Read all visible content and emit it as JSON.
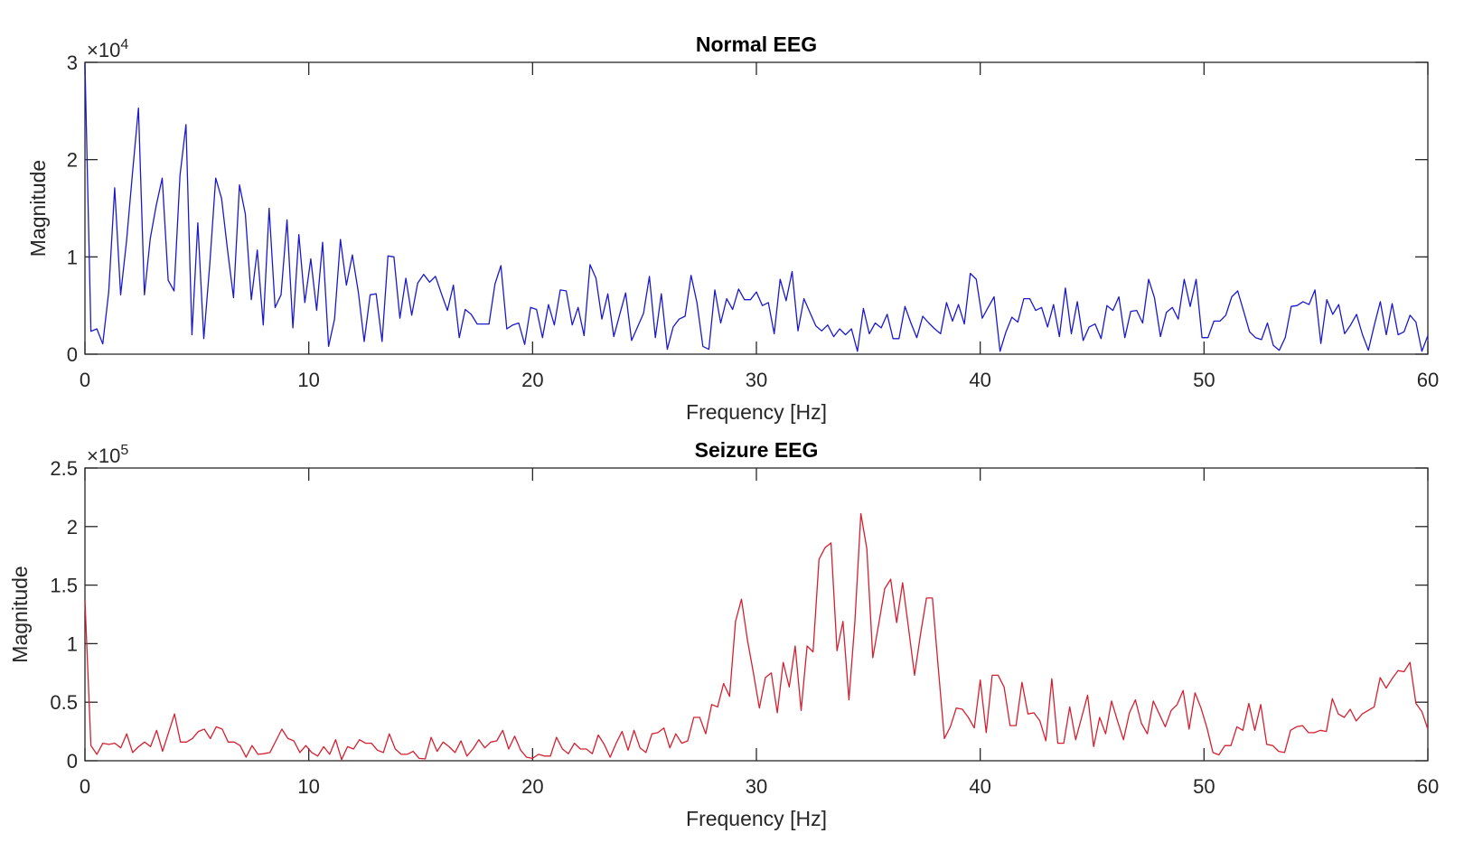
{
  "chart_data": [
    {
      "type": "line",
      "title": "Normal EEG",
      "xlabel": "Frequency [Hz]",
      "ylabel": "Magnitude",
      "y_exponent_base": "×10",
      "y_exponent": "4",
      "xlim": [
        0,
        60
      ],
      "ylim": [
        0,
        3
      ],
      "xticks": [
        "0",
        "10",
        "20",
        "30",
        "40",
        "50",
        "60"
      ],
      "yticks": [
        "0",
        "1",
        "2",
        "3"
      ],
      "grid": false,
      "color": "#1a1acc",
      "values": [
        2.99,
        0.235,
        0.26,
        0.105,
        0.64,
        1.71,
        0.61,
        1.16,
        1.86,
        2.53,
        0.61,
        1.19,
        1.53,
        1.81,
        0.76,
        0.65,
        1.84,
        2.36,
        0.2,
        1.35,
        0.16,
        0.92,
        1.81,
        1.6,
        1.07,
        0.58,
        1.74,
        1.44,
        0.56,
        1.07,
        0.3,
        1.5,
        0.48,
        0.61,
        1.38,
        0.27,
        1.23,
        0.53,
        0.98,
        0.45,
        1.15,
        0.08,
        0.36,
        1.18,
        0.71,
        1.02,
        0.64,
        0.13,
        0.61,
        0.62,
        0.13,
        1.01,
        1.0,
        0.37,
        0.78,
        0.4,
        0.73,
        0.82,
        0.74,
        0.8,
        0.62,
        0.45,
        0.71,
        0.17,
        0.46,
        0.41,
        0.31,
        0.31,
        0.31,
        0.72,
        0.91,
        0.26,
        0.3,
        0.32,
        0.1,
        0.48,
        0.46,
        0.17,
        0.51,
        0.3,
        0.66,
        0.65,
        0.3,
        0.48,
        0.19,
        0.92,
        0.78,
        0.36,
        0.62,
        0.18,
        0.41,
        0.63,
        0.14,
        0.28,
        0.42,
        0.8,
        0.17,
        0.62,
        0.05,
        0.28,
        0.36,
        0.39,
        0.81,
        0.53,
        0.08,
        0.05,
        0.66,
        0.32,
        0.57,
        0.46,
        0.67,
        0.56,
        0.56,
        0.64,
        0.5,
        0.53,
        0.21,
        0.77,
        0.55,
        0.85,
        0.24,
        0.57,
        0.43,
        0.29,
        0.24,
        0.3,
        0.18,
        0.26,
        0.2,
        0.26,
        0.03,
        0.47,
        0.21,
        0.32,
        0.27,
        0.41,
        0.16,
        0.16,
        0.49,
        0.32,
        0.17,
        0.39,
        0.32,
        0.26,
        0.21,
        0.53,
        0.34,
        0.51,
        0.31,
        0.83,
        0.77,
        0.37,
        0.48,
        0.59,
        0.03,
        0.23,
        0.38,
        0.33,
        0.57,
        0.57,
        0.45,
        0.48,
        0.28,
        0.51,
        0.18,
        0.68,
        0.21,
        0.54,
        0.14,
        0.28,
        0.31,
        0.16,
        0.5,
        0.45,
        0.59,
        0.17,
        0.44,
        0.45,
        0.32,
        0.77,
        0.58,
        0.18,
        0.43,
        0.48,
        0.36,
        0.77,
        0.49,
        0.77,
        0.17,
        0.17,
        0.34,
        0.34,
        0.4,
        0.59,
        0.65,
        0.44,
        0.23,
        0.17,
        0.15,
        0.32,
        0.09,
        0.04,
        0.17,
        0.49,
        0.5,
        0.54,
        0.51,
        0.66,
        0.11,
        0.56,
        0.41,
        0.51,
        0.21,
        0.3,
        0.41,
        0.2,
        0.04,
        0.3,
        0.54,
        0.2,
        0.52,
        0.2,
        0.23,
        0.4,
        0.33,
        0.03,
        0.19
      ]
    },
    {
      "type": "line",
      "title": "Seizure EEG",
      "xlabel": "Frequency [Hz]",
      "ylabel": "Magnitude",
      "y_exponent_base": "×10",
      "y_exponent": "5",
      "xlim": [
        0,
        60
      ],
      "ylim": [
        0,
        2.5
      ],
      "xticks": [
        "0",
        "10",
        "20",
        "30",
        "40",
        "50",
        "60"
      ],
      "yticks": [
        "0",
        "0.5",
        "1",
        "1.5",
        "2",
        "2.5"
      ],
      "grid": false,
      "color": "#d42030",
      "values": [
        1.37,
        0.13,
        0.055,
        0.15,
        0.14,
        0.15,
        0.11,
        0.23,
        0.07,
        0.12,
        0.16,
        0.12,
        0.26,
        0.08,
        0.24,
        0.4,
        0.16,
        0.16,
        0.19,
        0.25,
        0.27,
        0.19,
        0.29,
        0.27,
        0.16,
        0.16,
        0.13,
        0.03,
        0.13,
        0.055,
        0.06,
        0.07,
        0.17,
        0.27,
        0.19,
        0.17,
        0.07,
        0.13,
        0.07,
        0.04,
        0.12,
        0.055,
        0.18,
        0.01,
        0.12,
        0.1,
        0.18,
        0.15,
        0.15,
        0.09,
        0.07,
        0.23,
        0.1,
        0.055,
        0.055,
        0.08,
        0.02,
        0.016,
        0.2,
        0.08,
        0.16,
        0.12,
        0.07,
        0.17,
        0.04,
        0.1,
        0.18,
        0.11,
        0.16,
        0.17,
        0.26,
        0.1,
        0.21,
        0.09,
        0.03,
        0.02,
        0.055,
        0.04,
        0.04,
        0.2,
        0.1,
        0.06,
        0.15,
        0.1,
        0.1,
        0.06,
        0.22,
        0.14,
        0.03,
        0.15,
        0.25,
        0.09,
        0.26,
        0.11,
        0.07,
        0.23,
        0.24,
        0.28,
        0.11,
        0.23,
        0.15,
        0.17,
        0.37,
        0.37,
        0.23,
        0.48,
        0.46,
        0.66,
        0.55,
        1.19,
        1.38,
        1.03,
        0.75,
        0.45,
        0.71,
        0.75,
        0.41,
        0.84,
        0.63,
        0.98,
        0.43,
        0.98,
        0.93,
        1.72,
        1.82,
        1.86,
        0.94,
        1.19,
        0.52,
        1.19,
        2.11,
        1.81,
        0.88,
        1.17,
        1.47,
        1.55,
        1.18,
        1.52,
        1.13,
        0.73,
        1.08,
        1.39,
        1.39,
        0.78,
        0.19,
        0.29,
        0.45,
        0.44,
        0.37,
        0.28,
        0.69,
        0.24,
        0.73,
        0.73,
        0.63,
        0.3,
        0.3,
        0.67,
        0.4,
        0.41,
        0.34,
        0.17,
        0.7,
        0.15,
        0.15,
        0.46,
        0.18,
        0.37,
        0.56,
        0.12,
        0.37,
        0.23,
        0.51,
        0.34,
        0.18,
        0.41,
        0.52,
        0.32,
        0.23,
        0.51,
        0.4,
        0.29,
        0.43,
        0.48,
        0.6,
        0.27,
        0.58,
        0.45,
        0.28,
        0.07,
        0.05,
        0.13,
        0.13,
        0.29,
        0.26,
        0.49,
        0.26,
        0.48,
        0.14,
        0.13,
        0.08,
        0.07,
        0.26,
        0.29,
        0.3,
        0.24,
        0.24,
        0.26,
        0.25,
        0.53,
        0.4,
        0.37,
        0.44,
        0.34,
        0.4,
        0.43,
        0.46,
        0.71,
        0.62,
        0.7,
        0.77,
        0.76,
        0.84,
        0.49,
        0.42,
        0.27
      ]
    }
  ]
}
